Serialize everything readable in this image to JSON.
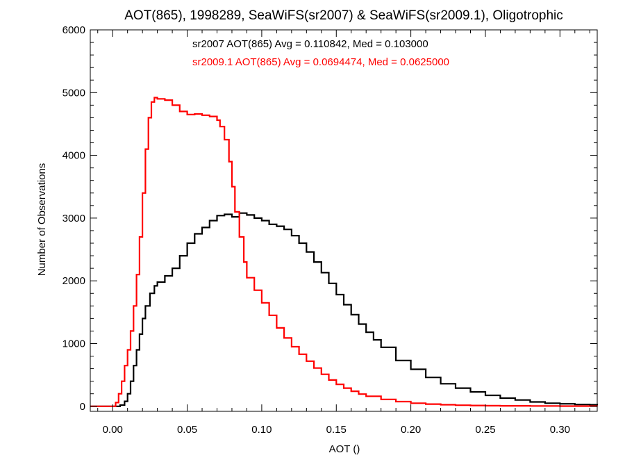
{
  "chart_data": {
    "type": "line",
    "title": "AOT(865), 1998289, SeaWiFS(sr2007) & SeaWiFS(sr2009.1), Oligotrophic",
    "xlabel": "AOT ()",
    "ylabel": "Number of Observations",
    "xlim": [
      -0.015,
      0.325
    ],
    "ylim": [
      -80,
      6000
    ],
    "xticks": [
      "0.00",
      "0.05",
      "0.10",
      "0.15",
      "0.20",
      "0.25",
      "0.30"
    ],
    "yticks": [
      "0",
      "1000",
      "2000",
      "3000",
      "4000",
      "5000",
      "6000"
    ],
    "step": true,
    "grid": false,
    "annotations": [
      {
        "text": "sr2007 AOT(865) Avg = 0.110842, Med = 0.103000",
        "color": "#000000"
      },
      {
        "text": "sr2009.1 AOT(865) Avg = 0.0694474, Med = 0.0625000",
        "color": "#ff0000"
      }
    ],
    "series": [
      {
        "color": "#000000",
        "x": [
          -0.015,
          0.0,
          0.005,
          0.008,
          0.01,
          0.012,
          0.014,
          0.016,
          0.018,
          0.02,
          0.022,
          0.025,
          0.028,
          0.03,
          0.035,
          0.04,
          0.045,
          0.05,
          0.055,
          0.06,
          0.065,
          0.07,
          0.075,
          0.08,
          0.085,
          0.09,
          0.095,
          0.1,
          0.105,
          0.11,
          0.115,
          0.12,
          0.125,
          0.13,
          0.135,
          0.14,
          0.145,
          0.15,
          0.155,
          0.16,
          0.165,
          0.17,
          0.175,
          0.18,
          0.19,
          0.2,
          0.21,
          0.22,
          0.23,
          0.24,
          0.25,
          0.26,
          0.27,
          0.28,
          0.29,
          0.3,
          0.31,
          0.32,
          0.325
        ],
        "y": [
          0,
          0,
          20,
          80,
          200,
          400,
          650,
          900,
          1150,
          1400,
          1600,
          1800,
          1920,
          1980,
          2080,
          2200,
          2400,
          2600,
          2750,
          2850,
          2960,
          3040,
          3060,
          3020,
          3080,
          3050,
          3000,
          2960,
          2900,
          2870,
          2820,
          2720,
          2600,
          2460,
          2300,
          2130,
          1960,
          1780,
          1620,
          1460,
          1310,
          1180,
          1060,
          940,
          730,
          590,
          460,
          360,
          290,
          230,
          175,
          130,
          100,
          70,
          50,
          40,
          30,
          25,
          20
        ]
      },
      {
        "color": "#ff0000",
        "x": [
          -0.015,
          0.0,
          0.002,
          0.004,
          0.006,
          0.008,
          0.01,
          0.012,
          0.014,
          0.016,
          0.018,
          0.02,
          0.022,
          0.024,
          0.026,
          0.028,
          0.03,
          0.035,
          0.04,
          0.045,
          0.05,
          0.055,
          0.06,
          0.065,
          0.07,
          0.072,
          0.075,
          0.078,
          0.08,
          0.082,
          0.085,
          0.088,
          0.09,
          0.095,
          0.1,
          0.105,
          0.11,
          0.115,
          0.12,
          0.125,
          0.13,
          0.135,
          0.14,
          0.145,
          0.15,
          0.155,
          0.16,
          0.165,
          0.17,
          0.18,
          0.19,
          0.2,
          0.21,
          0.22,
          0.23,
          0.24,
          0.25,
          0.26,
          0.28,
          0.3,
          0.325
        ],
        "y": [
          0,
          0,
          60,
          200,
          400,
          650,
          900,
          1200,
          1600,
          2100,
          2700,
          3400,
          4100,
          4600,
          4850,
          4920,
          4900,
          4880,
          4800,
          4700,
          4650,
          4660,
          4640,
          4620,
          4560,
          4460,
          4250,
          3900,
          3500,
          3100,
          2700,
          2300,
          2050,
          1850,
          1650,
          1450,
          1250,
          1090,
          950,
          830,
          720,
          610,
          510,
          420,
          350,
          290,
          240,
          195,
          160,
          110,
          75,
          50,
          35,
          25,
          18,
          13,
          10,
          7,
          5,
          3,
          2
        ]
      }
    ]
  }
}
